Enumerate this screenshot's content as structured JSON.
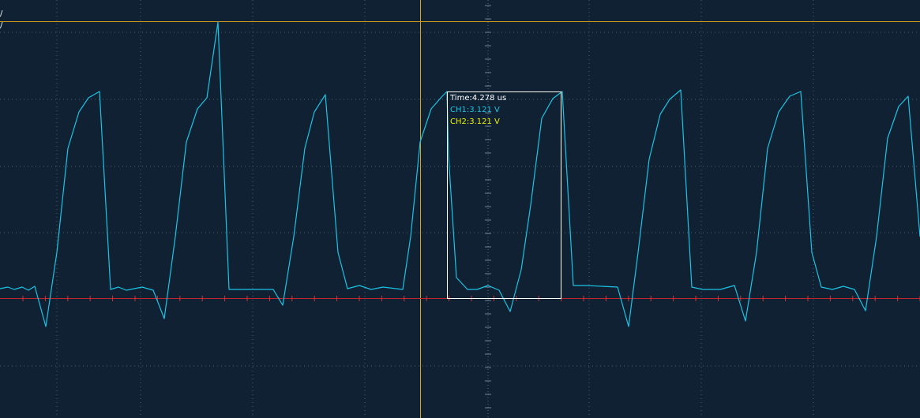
{
  "scope": {
    "background_color": "#0f2133",
    "grid_color": "#4a6072",
    "trigger_color": "#d9a21b",
    "ground_color": "#c0262b",
    "ch1_color": "#1cc4e4",
    "ch2_color": "#f0f000"
  },
  "cursor_labels": {
    "top": "/",
    "second": "/"
  },
  "readout": {
    "time": "Time:4.278 us",
    "ch1": "CH1:3.121 V",
    "ch2": "CH2:3.121 V"
  }
}
